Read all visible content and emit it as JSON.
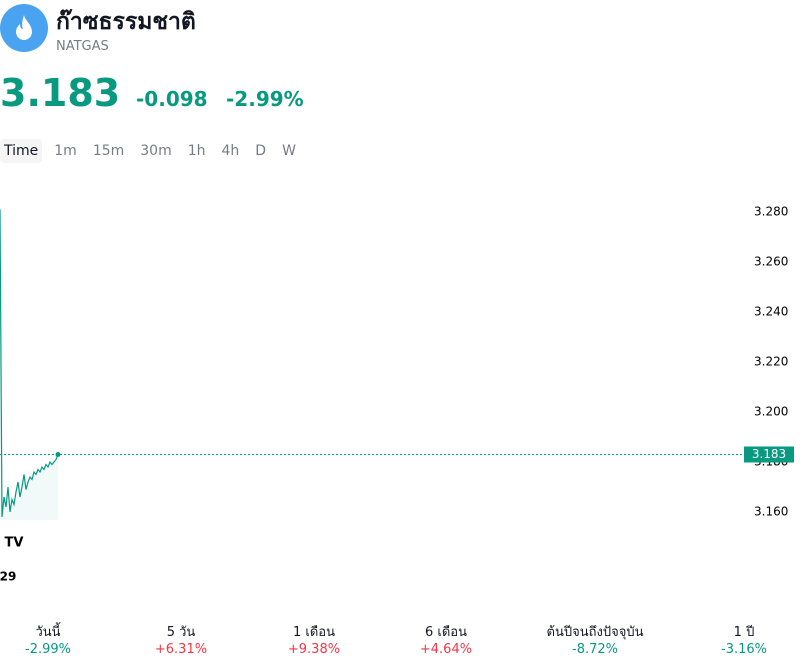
{
  "header": {
    "title": "ก๊าซธรรมชาติ",
    "symbol": "NATGAS",
    "price": "3.183",
    "change": "-0.098",
    "change_percent": "-2.99%"
  },
  "tabs": [
    "Time",
    "1m",
    "15m",
    "30m",
    "1h",
    "4h",
    "D",
    "W"
  ],
  "chart_data": {
    "type": "line",
    "color": "#089981",
    "values": [
      3.281,
      3.158,
      3.166,
      3.162,
      3.17,
      3.16,
      3.165,
      3.163,
      3.168,
      3.172,
      3.166,
      3.17,
      3.175,
      3.169,
      3.172,
      3.174,
      3.173,
      3.176,
      3.175,
      3.177,
      3.176,
      3.178,
      3.177,
      3.179,
      3.178,
      3.18,
      3.179,
      3.18,
      3.181,
      3.183
    ],
    "ylim": [
      3.1248,
      3.2888
    ],
    "yticks": [
      {
        "value": 3.16,
        "label": "3.160"
      },
      {
        "value": 3.18,
        "label": "3.180"
      },
      {
        "value": 3.2,
        "label": "3.200"
      },
      {
        "value": 3.22,
        "label": "3.220"
      },
      {
        "value": 3.24,
        "label": "3.240"
      },
      {
        "value": 3.26,
        "label": "3.260"
      },
      {
        "value": 3.28,
        "label": "3.280"
      }
    ],
    "xtick_label": "29",
    "last_price": 3.183
  },
  "performance": [
    {
      "label": "วันนี้",
      "value": "-2.99%",
      "color": "#089981"
    },
    {
      "label": "5 วัน",
      "value": "+6.31%",
      "color": "#f23645"
    },
    {
      "label": "1 เดือน",
      "value": "+9.38%",
      "color": "#f23645"
    },
    {
      "label": "6 เดือน",
      "value": "+4.64%",
      "color": "#f23645"
    },
    {
      "label": "ต้นปีจนถึงปัจจุบัน",
      "value": "-8.72%",
      "color": "#089981"
    },
    {
      "label": "1 ปี",
      "value": "-3.16%",
      "color": "#089981"
    }
  ]
}
